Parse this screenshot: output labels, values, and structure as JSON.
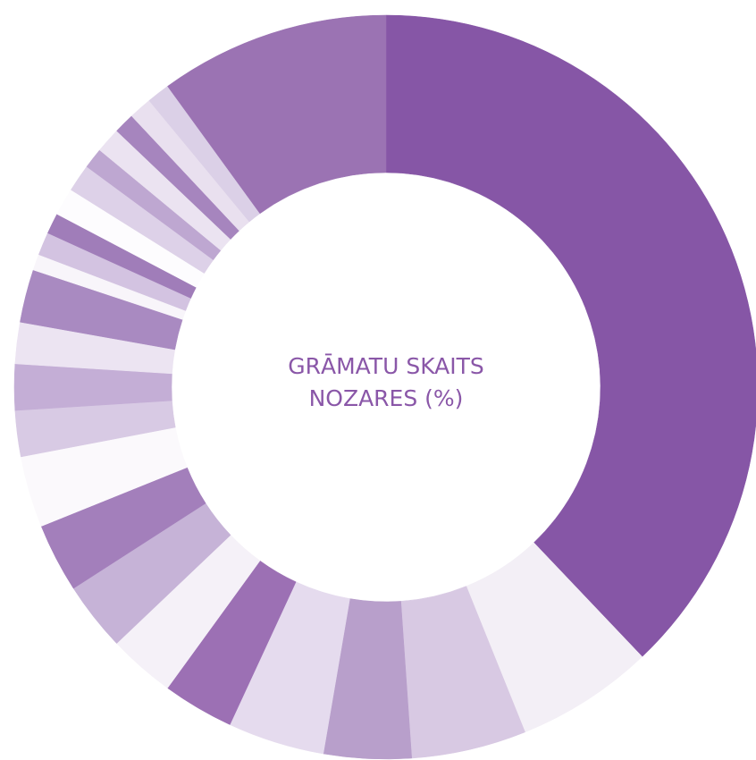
{
  "chart_data": {
    "type": "donut",
    "title": "GRĀMATU SKAITS NOZARES (%)",
    "values": [
      37.9,
      6,
      5,
      3.8,
      4.2,
      3.1,
      2.9,
      3,
      3,
      3.1,
      2,
      2,
      1.8,
      2.3,
      0.7,
      1,
      0.9,
      1.2,
      1.2,
      0.9,
      1.1,
      0.9,
      1,
      1,
      10
    ],
    "colors": [
      "#8656a6",
      "#f3eff6",
      "#d8c9e3",
      "#b89fcb",
      "#e5dbee",
      "#9c70b4",
      "#f5f1f8",
      "#c6b3d7",
      "#a37fbb",
      "#fbf9fc",
      "#d8cae4",
      "#c4aed6",
      "#ece4f2",
      "#a98ac1",
      "#f8f5fa",
      "#d3c3e1",
      "#a07db9",
      "#fdfcfe",
      "#ddd1e8",
      "#bea7d1",
      "#ebe3f1",
      "#a685be",
      "#e9e0ef",
      "#dbd0e7",
      "#9b73b3"
    ]
  }
}
